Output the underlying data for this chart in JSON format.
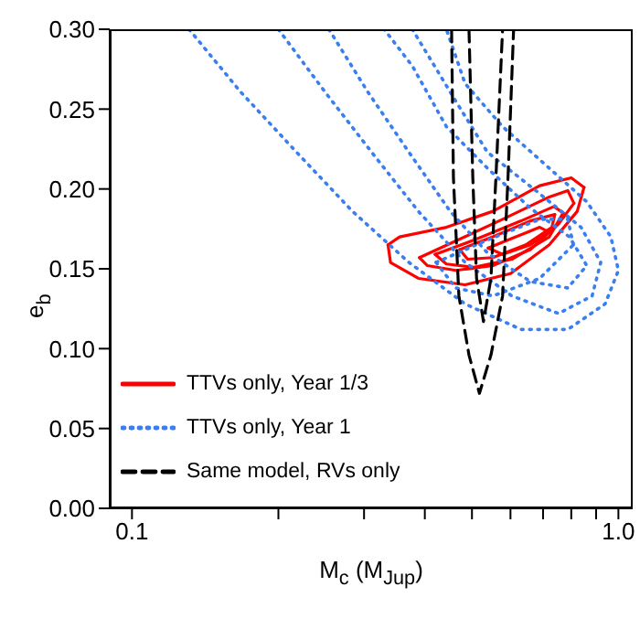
{
  "chart_data": {
    "type": "line",
    "xlabel": "M$_{c}$ (M$_{Jup}$)",
    "ylabel": "e$_{b}$",
    "log": "x",
    "xlim": [
      0.09,
      1.07
    ],
    "xticks": [
      {
        "value": 0.1,
        "label": "0.1"
      },
      {
        "value": 0.2,
        "label": null
      },
      {
        "value": 0.3,
        "label": null
      },
      {
        "value": 0.4,
        "label": null
      },
      {
        "value": 0.5,
        "label": null
      },
      {
        "value": 0.6,
        "label": null
      },
      {
        "value": 0.7,
        "label": null
      },
      {
        "value": 0.8,
        "label": null
      },
      {
        "value": 0.9,
        "label": null
      },
      {
        "value": 1,
        "label": "1.0"
      }
    ],
    "ylim": [
      0,
      0.3
    ],
    "yticks": [
      {
        "value": 0,
        "label": "0.00"
      },
      {
        "value": 0.05,
        "label": "0.05"
      },
      {
        "value": 0.1,
        "label": "0.10"
      },
      {
        "value": 0.15,
        "label": "0.15"
      },
      {
        "value": 0.2,
        "label": "0.20"
      },
      {
        "value": 0.25,
        "label": "0.25"
      },
      {
        "value": 0.3,
        "label": "0.30"
      }
    ],
    "grid": false,
    "legend": "bottom left",
    "marker": "none",
    "series": [
      {
        "name": "TTVs only, Year 1/3",
        "color": "#ff0000",
        "line_style": "solid",
        "x": [
          0.336,
          0.355,
          0.443,
          0.552,
          0.689,
          0.8,
          0.85
        ],
        "values": [
          0.165,
          0.17,
          0.176,
          0.186,
          0.202,
          0.207,
          0.201
        ]
      },
      {
        "color": "#ff0000",
        "line_style": "solid",
        "x": [
          0.336,
          0.34,
          0.388,
          0.484,
          0.6,
          0.721,
          0.823,
          0.85
        ],
        "values": [
          0.165,
          0.154,
          0.144,
          0.14,
          0.147,
          0.165,
          0.186,
          0.201
        ]
      },
      {
        "color": "#ff0000",
        "line_style": "solid",
        "x": [
          0.39,
          0.46,
          0.578,
          0.721,
          0.787,
          0.81
        ],
        "values": [
          0.157,
          0.167,
          0.181,
          0.195,
          0.199,
          0.191
        ]
      },
      {
        "color": "#ff0000",
        "line_style": "solid",
        "x": [
          0.39,
          0.405,
          0.463,
          0.552,
          0.659,
          0.753,
          0.81
        ],
        "values": [
          0.157,
          0.152,
          0.149,
          0.152,
          0.162,
          0.178,
          0.191
        ]
      },
      {
        "color": "#ff0000",
        "line_style": "solid",
        "x": [
          0.42,
          0.505,
          0.631,
          0.737,
          0.77
        ],
        "values": [
          0.159,
          0.168,
          0.18,
          0.189,
          0.185
        ]
      },
      {
        "color": "#ff0000",
        "line_style": "solid",
        "x": [
          0.42,
          0.443,
          0.505,
          0.604,
          0.721,
          0.77
        ],
        "values": [
          0.159,
          0.153,
          0.151,
          0.156,
          0.17,
          0.185
        ]
      },
      {
        "color": "#ff0000",
        "line_style": "solid",
        "x": [
          0.472,
          0.552,
          0.659,
          0.74
        ],
        "values": [
          0.162,
          0.17,
          0.18,
          0.184
        ]
      },
      {
        "color": "#ff0000",
        "line_style": "solid",
        "x": [
          0.472,
          0.49,
          0.552,
          0.645,
          0.73,
          0.74
        ],
        "values": [
          0.162,
          0.156,
          0.157,
          0.165,
          0.176,
          0.184
        ]
      },
      {
        "color": "#ff0000",
        "line_style": "solid",
        "x": [
          0.54,
          0.604,
          0.689,
          0.72
        ],
        "values": [
          0.163,
          0.169,
          0.176,
          0.173
        ]
      },
      {
        "color": "#ff0000",
        "line_style": "solid",
        "x": [
          0.54,
          0.578,
          0.659,
          0.72
        ],
        "values": [
          0.163,
          0.159,
          0.165,
          0.173
        ]
      },
      {
        "name": "TTVs only, Year 1",
        "color": "#3a7ff0",
        "line_style": "dotted",
        "x": [
          0.131,
          0.167,
          0.218,
          0.284,
          0.371,
          0.484,
          0.631,
          0.787,
          0.939,
          1.0,
          0.965,
          0.861,
          0.721,
          0.578,
          0.484,
          0.443
        ],
        "values": [
          0.3,
          0.261,
          0.223,
          0.186,
          0.154,
          0.128,
          0.112,
          0.112,
          0.128,
          0.149,
          0.17,
          0.192,
          0.213,
          0.239,
          0.266,
          0.3
        ]
      },
      {
        "color": "#3a7ff0",
        "line_style": "dotted",
        "x": [
          0.2,
          0.249,
          0.311,
          0.388,
          0.484,
          0.604,
          0.753,
          0.883,
          0.92,
          0.838,
          0.689,
          0.538,
          0.463,
          0.377
        ],
        "values": [
          0.3,
          0.261,
          0.223,
          0.186,
          0.154,
          0.133,
          0.122,
          0.133,
          0.154,
          0.176,
          0.197,
          0.223,
          0.255,
          0.3
        ]
      },
      {
        "color": "#3a7ff0",
        "line_style": "dotted",
        "x": [
          0.254,
          0.305,
          0.371,
          0.451,
          0.538,
          0.659,
          0.787,
          0.861,
          0.793,
          0.659,
          0.538,
          0.443,
          0.377,
          0.33
        ],
        "values": [
          0.3,
          0.261,
          0.223,
          0.186,
          0.16,
          0.142,
          0.138,
          0.152,
          0.17,
          0.188,
          0.213,
          0.239,
          0.277,
          0.3
        ]
      },
      {
        "color": "#3a7ff0",
        "line_style": "dotted",
        "x": [
          0.422,
          0.528,
          0.689,
          0.787,
          0.808
        ],
        "values": [
          0.154,
          0.167,
          0.181,
          0.181,
          0.165
        ]
      },
      {
        "color": "#3a7ff0",
        "line_style": "dotted",
        "x": [
          0.422,
          0.463,
          0.552,
          0.689,
          0.808
        ],
        "values": [
          0.154,
          0.138,
          0.133,
          0.144,
          0.165
        ]
      },
      {
        "name": "Same model, RVs only",
        "color": "#000000",
        "line_style": "dashed",
        "x": [
          0.454,
          0.458,
          0.47,
          0.493,
          0.518,
          0.547,
          0.578,
          0.593,
          0.609
        ],
        "values": [
          0.3,
          0.207,
          0.133,
          0.096,
          0.072,
          0.096,
          0.133,
          0.207,
          0.3
        ]
      },
      {
        "color": "#000000",
        "line_style": "dashed",
        "x": [
          0.493,
          0.502,
          0.511,
          0.528,
          0.547,
          0.56,
          0.578
        ],
        "values": [
          0.3,
          0.207,
          0.144,
          0.117,
          0.144,
          0.207,
          0.3
        ]
      }
    ]
  }
}
